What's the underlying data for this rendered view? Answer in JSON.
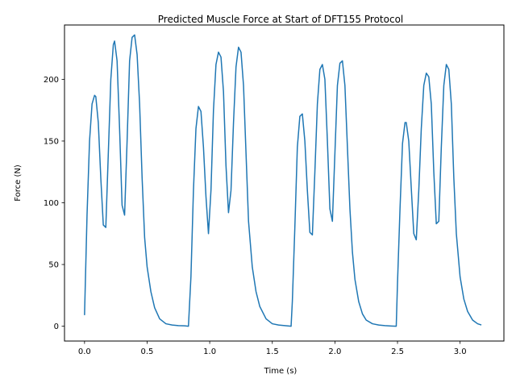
{
  "chart_data": {
    "type": "line",
    "title": "Predicted Muscle Force at Start of DFT155 Protocol",
    "xlabel": "Time (s)",
    "ylabel": "Force (N)",
    "xlim": [
      -0.16,
      3.35
    ],
    "ylim": [
      -12,
      244
    ],
    "xticks": [
      0.0,
      0.5,
      1.0,
      1.5,
      2.0,
      2.5,
      3.0
    ],
    "xtick_labels": [
      "0.0",
      "0.5",
      "1.0",
      "1.5",
      "2.0",
      "2.5",
      "3.0"
    ],
    "yticks": [
      0,
      50,
      100,
      150,
      200
    ],
    "ytick_labels": [
      "0",
      "50",
      "100",
      "150",
      "200"
    ],
    "grid": false,
    "series": [
      {
        "color": "#1f77b4",
        "x": [
          0.0,
          0.02,
          0.04,
          0.06,
          0.08,
          0.09,
          0.11,
          0.13,
          0.15,
          0.17,
          0.19,
          0.21,
          0.23,
          0.24,
          0.26,
          0.28,
          0.3,
          0.32,
          0.34,
          0.36,
          0.38,
          0.4,
          0.42,
          0.44,
          0.46,
          0.48,
          0.5,
          0.53,
          0.56,
          0.6,
          0.65,
          0.7,
          0.75,
          0.8,
          0.83,
          0.85,
          0.87,
          0.89,
          0.91,
          0.93,
          0.95,
          0.97,
          0.99,
          1.01,
          1.03,
          1.05,
          1.07,
          1.09,
          1.11,
          1.13,
          1.15,
          1.17,
          1.19,
          1.21,
          1.23,
          1.25,
          1.27,
          1.29,
          1.31,
          1.34,
          1.37,
          1.4,
          1.45,
          1.5,
          1.55,
          1.6,
          1.65,
          1.66,
          1.68,
          1.7,
          1.72,
          1.74,
          1.76,
          1.78,
          1.8,
          1.82,
          1.84,
          1.86,
          1.88,
          1.9,
          1.92,
          1.94,
          1.96,
          1.98,
          2.0,
          2.02,
          2.04,
          2.06,
          2.08,
          2.1,
          2.12,
          2.14,
          2.16,
          2.19,
          2.22,
          2.25,
          2.3,
          2.35,
          2.4,
          2.45,
          2.49,
          2.5,
          2.52,
          2.54,
          2.56,
          2.57,
          2.59,
          2.61,
          2.63,
          2.65,
          2.67,
          2.69,
          2.71,
          2.73,
          2.75,
          2.77,
          2.79,
          2.81,
          2.83,
          2.85,
          2.87,
          2.89,
          2.91,
          2.93,
          2.95,
          2.97,
          3.0,
          3.03,
          3.06,
          3.1,
          3.14,
          3.17
        ],
        "y": [
          9,
          90,
          150,
          180,
          187,
          186,
          165,
          120,
          82,
          80,
          140,
          200,
          228,
          231,
          215,
          160,
          98,
          90,
          150,
          215,
          234,
          236,
          220,
          180,
          120,
          72,
          48,
          28,
          15,
          6,
          2,
          1,
          0.5,
          0.3,
          0,
          40,
          110,
          160,
          178,
          174,
          145,
          105,
          75,
          110,
          175,
          212,
          222,
          218,
          190,
          130,
          92,
          110,
          165,
          210,
          226,
          222,
          195,
          140,
          85,
          48,
          28,
          16,
          6,
          2,
          1,
          0.5,
          0,
          20,
          80,
          145,
          170,
          172,
          150,
          110,
          76,
          74,
          125,
          180,
          208,
          212,
          200,
          150,
          95,
          85,
          140,
          195,
          213,
          215,
          195,
          145,
          95,
          60,
          38,
          20,
          10,
          5,
          2,
          1,
          0.5,
          0.2,
          0,
          35,
          95,
          148,
          165,
          165,
          150,
          112,
          75,
          70,
          110,
          160,
          195,
          205,
          202,
          180,
          125,
          83,
          85,
          145,
          195,
          212,
          208,
          180,
          120,
          75,
          40,
          22,
          12,
          5,
          2,
          1
        ]
      }
    ]
  }
}
